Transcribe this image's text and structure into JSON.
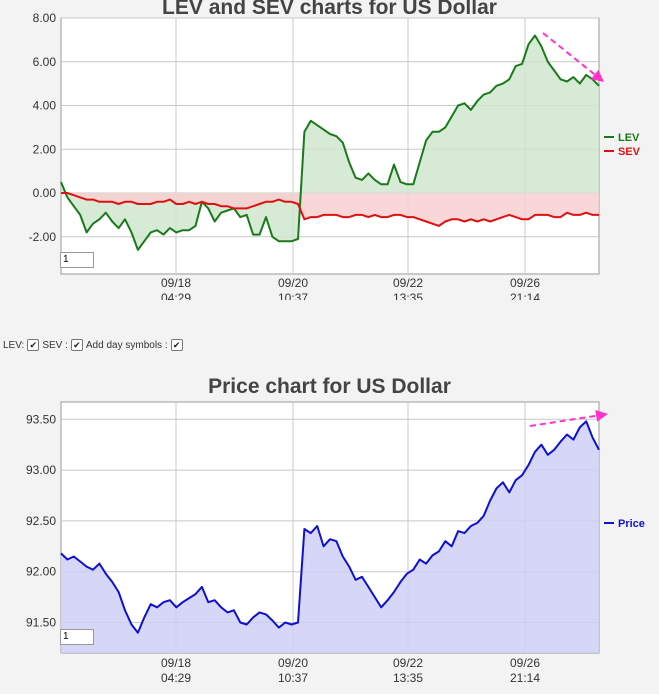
{
  "chart_data": [
    {
      "type": "line",
      "title": "LEV and SEV charts for US Dollar",
      "xlabel": "",
      "ylabel": "",
      "ylim": [
        -3.7,
        8.0
      ],
      "yticks": [
        "8.00",
        "6.00",
        "4.00",
        "2.00",
        "0.00",
        "-2.00"
      ],
      "xticks": [
        {
          "date": "09/18",
          "time": "04:29"
        },
        {
          "date": "09/20",
          "time": "10:37"
        },
        {
          "date": "09/22",
          "time": "13:35"
        },
        {
          "date": "09/26",
          "time": "21:14"
        }
      ],
      "grid": true,
      "legend": "right",
      "input_value": "1",
      "series": [
        {
          "name": "LEV",
          "color": "#1a7a1a",
          "fill": "#cfe6cf",
          "values": [
            0.5,
            -0.2,
            -0.6,
            -1.0,
            -1.8,
            -1.4,
            -1.2,
            -0.9,
            -1.3,
            -1.6,
            -1.2,
            -1.8,
            -2.6,
            -2.2,
            -1.8,
            -1.7,
            -1.9,
            -1.6,
            -1.8,
            -1.7,
            -1.7,
            -1.5,
            -0.4,
            -0.7,
            -1.3,
            -0.9,
            -0.8,
            -0.7,
            -1.1,
            -1.0,
            -1.9,
            -1.9,
            -1.1,
            -2.0,
            -2.2,
            -2.2,
            -2.2,
            -2.1,
            2.8,
            3.3,
            3.1,
            2.9,
            2.7,
            2.6,
            2.3,
            1.4,
            0.7,
            0.6,
            0.9,
            0.6,
            0.4,
            0.4,
            1.3,
            0.5,
            0.4,
            0.4,
            1.4,
            2.4,
            2.8,
            2.8,
            3.0,
            3.5,
            4.0,
            4.1,
            3.8,
            4.2,
            4.5,
            4.6,
            4.9,
            5.0,
            5.2,
            5.8,
            5.9,
            6.8,
            7.2,
            6.7,
            6.0,
            5.6,
            5.2,
            5.1,
            5.3,
            5.0,
            5.4,
            5.2,
            4.9
          ]
        },
        {
          "name": "SEV",
          "color": "#e01010",
          "fill": "#f6d0d0",
          "values": [
            0.0,
            0.0,
            -0.1,
            -0.2,
            -0.3,
            -0.3,
            -0.4,
            -0.4,
            -0.4,
            -0.5,
            -0.4,
            -0.4,
            -0.5,
            -0.5,
            -0.5,
            -0.4,
            -0.4,
            -0.3,
            -0.5,
            -0.5,
            -0.4,
            -0.5,
            -0.4,
            -0.5,
            -0.5,
            -0.6,
            -0.6,
            -0.7,
            -0.7,
            -0.7,
            -0.6,
            -0.5,
            -0.4,
            -0.4,
            -0.3,
            -0.4,
            -0.4,
            -0.5,
            -1.2,
            -1.1,
            -1.1,
            -1.0,
            -1.0,
            -1.0,
            -1.1,
            -1.1,
            -1.0,
            -1.0,
            -1.1,
            -1.0,
            -1.1,
            -1.1,
            -1.0,
            -1.0,
            -1.1,
            -1.1,
            -1.2,
            -1.3,
            -1.4,
            -1.5,
            -1.3,
            -1.2,
            -1.2,
            -1.3,
            -1.2,
            -1.3,
            -1.2,
            -1.3,
            -1.2,
            -1.1,
            -1.0,
            -1.1,
            -1.2,
            -1.2,
            -1.0,
            -1.0,
            -1.0,
            -1.1,
            -1.1,
            -0.9,
            -1.0,
            -1.0,
            -0.9,
            -1.0,
            -1.0
          ]
        }
      ]
    },
    {
      "type": "area",
      "title": "Price chart for US Dollar",
      "xlabel": "",
      "ylabel": "",
      "ylim": [
        91.2,
        93.67
      ],
      "yticks": [
        "93.50",
        "93.00",
        "92.50",
        "92.00",
        "91.50"
      ],
      "xticks": [
        {
          "date": "09/18",
          "time": "04:29"
        },
        {
          "date": "09/20",
          "time": "10:37"
        },
        {
          "date": "09/22",
          "time": "13:35"
        },
        {
          "date": "09/26",
          "time": "21:14"
        }
      ],
      "grid": true,
      "legend": "right",
      "input_value": "1",
      "series": [
        {
          "name": "Price",
          "color": "#1010d0",
          "fill": "#cfd0f4",
          "values": [
            92.18,
            92.12,
            92.15,
            92.1,
            92.05,
            92.02,
            92.08,
            91.98,
            91.9,
            91.8,
            91.62,
            91.48,
            91.4,
            91.55,
            91.68,
            91.65,
            91.7,
            91.72,
            91.65,
            91.7,
            91.74,
            91.78,
            91.85,
            91.7,
            91.72,
            91.65,
            91.6,
            91.62,
            91.5,
            91.48,
            91.55,
            91.6,
            91.58,
            91.52,
            91.45,
            91.5,
            91.48,
            91.5,
            92.42,
            92.38,
            92.45,
            92.25,
            92.32,
            92.3,
            92.15,
            92.05,
            91.92,
            91.95,
            91.85,
            91.75,
            91.65,
            91.72,
            91.8,
            91.9,
            91.98,
            92.02,
            92.12,
            92.08,
            92.16,
            92.2,
            92.3,
            92.25,
            92.4,
            92.38,
            92.45,
            92.48,
            92.55,
            92.7,
            92.82,
            92.88,
            92.78,
            92.9,
            92.95,
            93.05,
            93.18,
            93.25,
            93.15,
            93.2,
            93.28,
            93.35,
            93.3,
            93.42,
            93.48,
            93.32,
            93.2
          ]
        }
      ]
    }
  ]
}
